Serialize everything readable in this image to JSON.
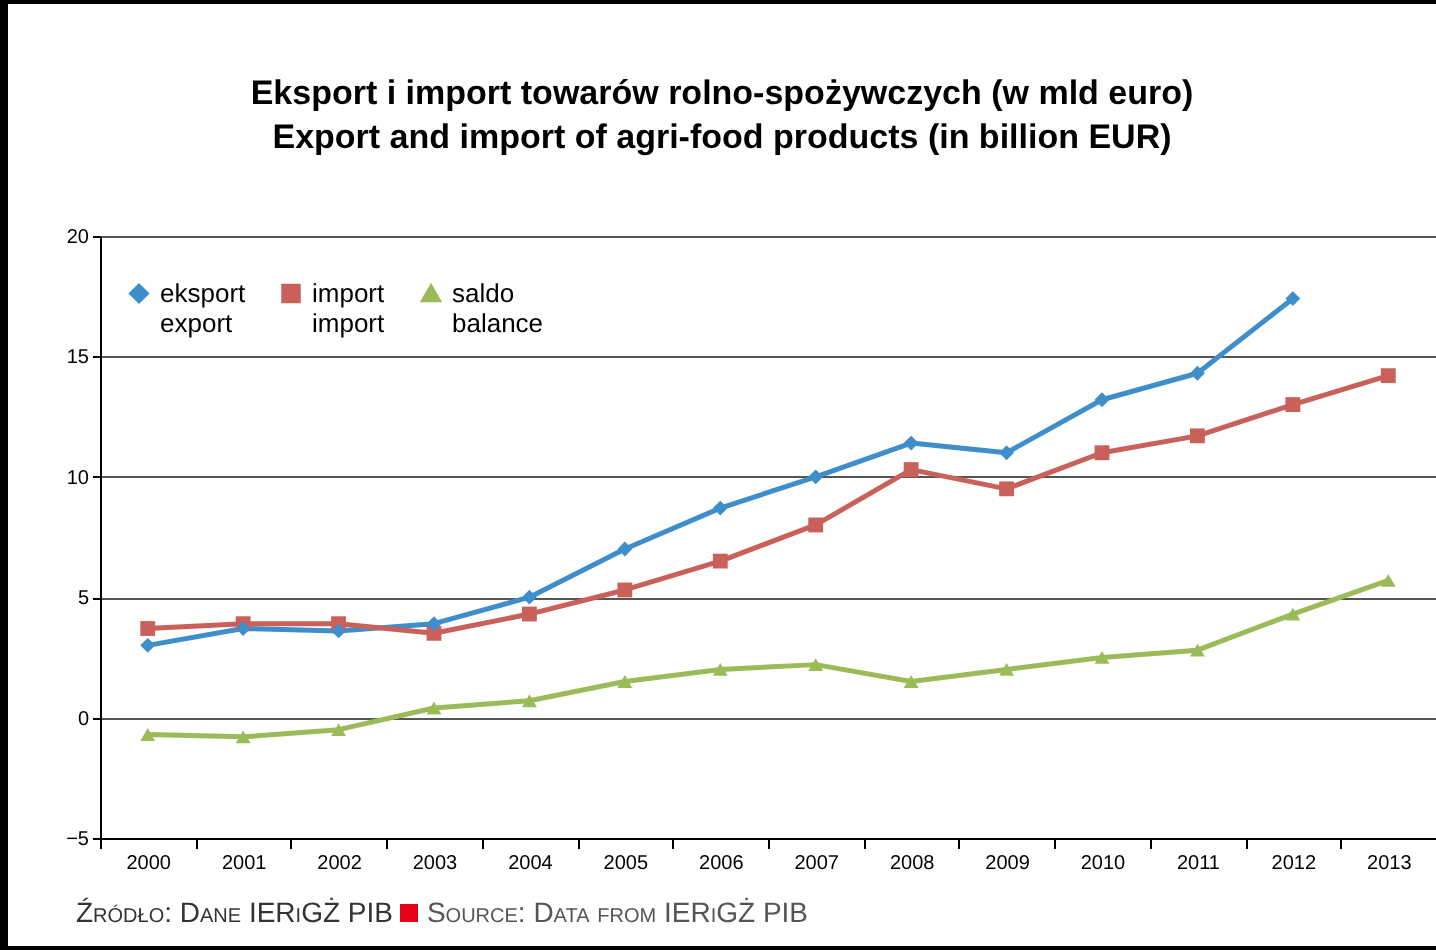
{
  "chart_data": {
    "type": "line",
    "title": "Eksport i import towarów rolno-spożywczych (w mld euro)\nExport and import of agri-food products (in billion EUR)",
    "categories": [
      "2000",
      "2001",
      "2002",
      "2003",
      "2004",
      "2005",
      "2006",
      "2007",
      "2008",
      "2009",
      "2010",
      "2011",
      "2012",
      "2013"
    ],
    "series": [
      {
        "name": "eksport\nexport",
        "color": "#3d8ecb",
        "marker": "diamond",
        "values": [
          3.0,
          3.7,
          3.6,
          3.9,
          5.0,
          7.0,
          8.7,
          10.0,
          11.4,
          11.0,
          13.2,
          14.3,
          17.4,
          null
        ]
      },
      {
        "name": "import\nimport",
        "color": "#c9605a",
        "marker": "square",
        "values": [
          3.7,
          3.9,
          3.9,
          3.5,
          4.3,
          5.3,
          6.5,
          8.0,
          10.3,
          9.5,
          11.0,
          11.7,
          13.0,
          14.2
        ]
      },
      {
        "name": "saldo\nbalance",
        "color": "#9bbb59",
        "marker": "triangle",
        "values": [
          -0.7,
          -0.8,
          -0.5,
          0.4,
          0.7,
          1.5,
          2.0,
          2.2,
          1.5,
          2.0,
          2.5,
          2.8,
          4.3,
          5.7
        ]
      }
    ],
    "ylim": [
      -5,
      20
    ],
    "yticks": [
      -5,
      0,
      5,
      10,
      15,
      20
    ],
    "grid": "y",
    "legend": "top left",
    "line_style": "solid",
    "annotations": [
      "Źródło: Dane IERiGŻ PIB",
      "Source: Data from IERiGŻ PIB"
    ]
  }
}
